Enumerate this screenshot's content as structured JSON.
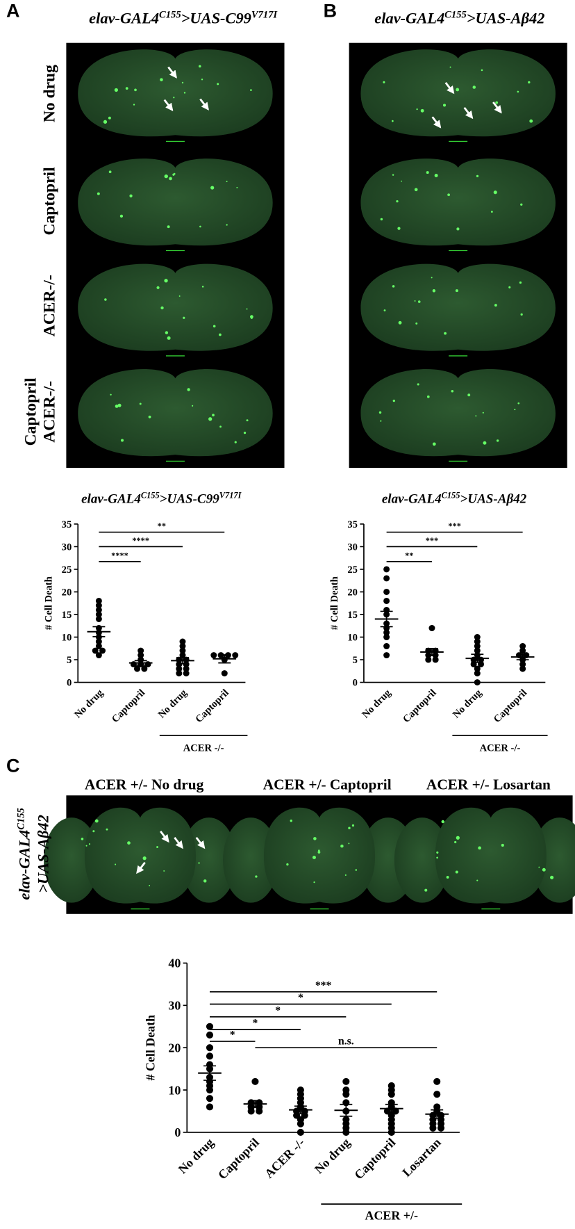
{
  "panels": [
    {
      "letter": "A",
      "title": [
        {
          "text": "elav-GAL4"
        },
        {
          "text": "C155",
          "sup": true
        },
        {
          "text": ">UAS-C99"
        },
        {
          "text": "V717I",
          "sup": true
        }
      ],
      "rows": [
        [
          "No drug"
        ],
        [
          "Captopril"
        ],
        [
          "ACER-/-"
        ],
        [
          "Captopril",
          "ACER-/-"
        ]
      ]
    },
    {
      "letter": "B",
      "title": [
        {
          "text": "elav-GAL4"
        },
        {
          "text": "C155",
          "sup": true
        },
        {
          "text": ">UAS-Aβ42"
        }
      ]
    },
    {
      "letter": "C",
      "side_label": [
        [
          {
            "text": "elav-GAL4"
          },
          {
            "text": "C155",
            "sup": true
          }
        ],
        [
          {
            "text": ">UAS-Aβ42"
          }
        ]
      ],
      "image_titles": [
        "ACER +/- No drug",
        "ACER +/- Captopril",
        "ACER +/- Losartan"
      ]
    }
  ],
  "chart_data": [
    {
      "type": "dot",
      "title": [
        {
          "text": "elav-GAL4"
        },
        {
          "text": "C155",
          "sup": true
        },
        {
          "text": ">UAS-C99"
        },
        {
          "text": "V717I",
          "sup": true
        }
      ],
      "ylabel": "# Cell Death",
      "ylim": [
        0,
        35
      ],
      "yticks": [
        0,
        5,
        10,
        15,
        20,
        25,
        30,
        35
      ],
      "categories": [
        "No drug",
        "Captopril",
        "No drug",
        "Captopril"
      ],
      "groups": [
        {
          "label": "ACER -/-",
          "categories": [
            2,
            3
          ]
        }
      ],
      "points": [
        [
          18,
          17,
          16,
          15,
          14,
          12,
          11,
          10,
          9,
          8,
          7,
          7,
          6
        ],
        [
          7,
          6,
          5,
          4,
          4,
          4,
          3,
          3
        ],
        [
          9,
          8,
          7,
          6,
          5,
          5,
          4,
          4,
          3,
          3,
          2,
          2
        ],
        [
          6,
          6,
          6,
          6,
          5,
          2
        ]
      ],
      "mean": [
        11.2,
        4.3,
        4.8,
        5.2
      ],
      "sem": [
        1.1,
        0.5,
        0.7,
        0.9
      ],
      "comparisons": [
        {
          "from": 0,
          "to": 1,
          "y": 26.7,
          "label": "****"
        },
        {
          "from": 0,
          "to": 2,
          "y": 30,
          "label": "****"
        },
        {
          "from": 0,
          "to": 3,
          "y": 33.2,
          "label": "**"
        }
      ]
    },
    {
      "type": "dot",
      "title": [
        {
          "text": "elav-GAL4"
        },
        {
          "text": "C155",
          "sup": true
        },
        {
          "text": ">UAS-Aβ42"
        }
      ],
      "ylabel": "# Cell Death",
      "ylim": [
        0,
        35
      ],
      "yticks": [
        0,
        5,
        10,
        15,
        20,
        25,
        30,
        35
      ],
      "categories": [
        "No drug",
        "Captopril",
        "No drug",
        "Captopril"
      ],
      "groups": [
        {
          "label": "ACER -/-",
          "categories": [
            2,
            3
          ]
        }
      ],
      "points": [
        [
          25,
          23,
          20,
          18,
          16,
          15,
          13,
          12,
          11,
          10,
          8,
          6
        ],
        [
          12,
          7,
          7,
          6,
          6,
          5,
          5
        ],
        [
          10,
          9,
          8,
          7,
          6,
          5,
          5,
          4,
          4,
          3,
          2,
          0
        ],
        [
          8,
          7,
          6,
          6,
          5,
          4,
          3
        ]
      ],
      "mean": [
        14,
        6.7,
        5.3,
        5.6
      ],
      "sem": [
        1.7,
        0.8,
        0.9,
        0.6
      ],
      "comparisons": [
        {
          "from": 0,
          "to": 1,
          "y": 26.7,
          "label": "**"
        },
        {
          "from": 0,
          "to": 2,
          "y": 30,
          "label": "***"
        },
        {
          "from": 0,
          "to": 3,
          "y": 33.2,
          "label": "***"
        }
      ]
    },
    {
      "type": "dot",
      "ylabel": "# Cell Death",
      "ylim": [
        0,
        40
      ],
      "yticks": [
        0,
        10,
        20,
        30,
        40
      ],
      "categories": [
        "No drug",
        "Captopril",
        "ACER -/-",
        "No drug",
        "Captopril",
        "Losartan"
      ],
      "groups": [
        {
          "label": "ACER +/-",
          "categories": [
            3,
            5
          ]
        }
      ],
      "points": [
        [
          25,
          23,
          20,
          18,
          16,
          15,
          13,
          12,
          11,
          10,
          8,
          6
        ],
        [
          12,
          7,
          7,
          6,
          6,
          5,
          5
        ],
        [
          10,
          9,
          8,
          7,
          6,
          5,
          5,
          4,
          4,
          3,
          2,
          0
        ],
        [
          12,
          10,
          9,
          7,
          5,
          3,
          2,
          1,
          0
        ],
        [
          11,
          10,
          9,
          7,
          6,
          5,
          5,
          4,
          3,
          2,
          1,
          0
        ],
        [
          12,
          9,
          6,
          5,
          4,
          4,
          3,
          3,
          2,
          2,
          1,
          1
        ]
      ],
      "mean": [
        14,
        6.7,
        5.3,
        5.2,
        5.6,
        4.3
      ],
      "sem": [
        1.7,
        0.8,
        0.9,
        1.4,
        1.0,
        1.0
      ],
      "comparisons": [
        {
          "from": 0,
          "to": 1,
          "y": 21.5,
          "label": "*"
        },
        {
          "from": 0,
          "to": 2,
          "y": 24.3,
          "label": "*"
        },
        {
          "from": 0,
          "to": 3,
          "y": 27.3,
          "label": "*"
        },
        {
          "from": 0,
          "to": 4,
          "y": 30.3,
          "label": "*"
        },
        {
          "from": 0,
          "to": 5,
          "y": 33.2,
          "label": "***"
        },
        {
          "from": 1,
          "to": 5,
          "y": 20,
          "label": "n.s."
        }
      ]
    }
  ]
}
